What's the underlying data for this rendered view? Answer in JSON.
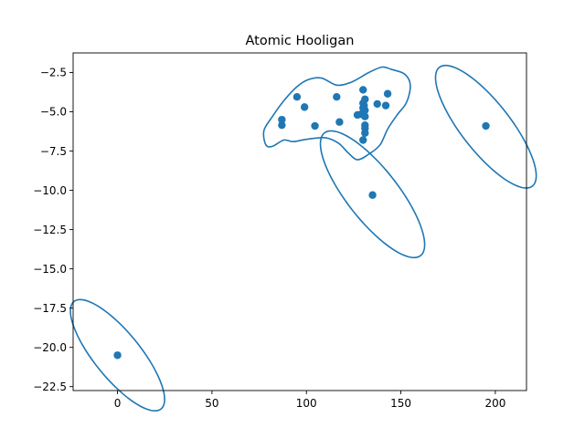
{
  "chart_data": {
    "type": "scatter",
    "title": "Atomic Hooligan",
    "xlabel": "",
    "ylabel": "",
    "xlim": [
      -23.5,
      216.5
    ],
    "ylim": [
      -22.75,
      -1.25
    ],
    "x_ticks": [
      0,
      50,
      100,
      150,
      200
    ],
    "y_ticks": [
      -22.5,
      -20.0,
      -17.5,
      -15.0,
      -12.5,
      -10.0,
      -7.5,
      -5.0,
      -2.5
    ],
    "x_tick_labels": [
      "0",
      "50",
      "100",
      "150",
      "200"
    ],
    "y_tick_labels": [
      "−22.5",
      "−20.0",
      "−17.5",
      "−15.0",
      "−12.5",
      "−10.0",
      "−7.5",
      "−5.0",
      "−2.5"
    ],
    "grid": false,
    "color": "#1f77b4",
    "series": [
      {
        "points": [
          [
            0,
            -20.5
          ],
          [
            87,
            -5.5
          ],
          [
            87,
            -5.85
          ],
          [
            95,
            -4.05
          ],
          [
            99,
            -4.7
          ],
          [
            104.5,
            -5.9
          ],
          [
            116,
            -4.05
          ],
          [
            117.5,
            -5.65
          ],
          [
            127,
            -5.2
          ],
          [
            129,
            -5.15
          ],
          [
            130,
            -3.6
          ],
          [
            130,
            -4.45
          ],
          [
            130,
            -4.75
          ],
          [
            130,
            -5.05
          ],
          [
            130,
            -6.8
          ],
          [
            130.5,
            -4.6
          ],
          [
            131,
            -4.2
          ],
          [
            131,
            -4.9
          ],
          [
            131,
            -5.3
          ],
          [
            131,
            -5.85
          ],
          [
            131,
            -6.05
          ],
          [
            131,
            -6.35
          ],
          [
            135,
            -10.3
          ],
          [
            137.5,
            -4.5
          ],
          [
            142,
            -4.6
          ],
          [
            143,
            -3.85
          ],
          [
            195,
            -5.9
          ]
        ]
      }
    ],
    "contours": [
      {
        "shape": "blob",
        "points": [
          [
            78.5,
            -7.1
          ],
          [
            77.5,
            -6.2
          ],
          [
            82,
            -5.3
          ],
          [
            88,
            -4.3
          ],
          [
            95,
            -3.4
          ],
          [
            101,
            -2.95
          ],
          [
            108,
            -2.85
          ],
          [
            116,
            -3.3
          ],
          [
            124,
            -3.1
          ],
          [
            133,
            -2.5
          ],
          [
            140,
            -2.15
          ],
          [
            145,
            -2.3
          ],
          [
            152,
            -2.6
          ],
          [
            155,
            -3.3
          ],
          [
            153,
            -4.4
          ],
          [
            148,
            -5.2
          ],
          [
            143,
            -6.1
          ],
          [
            139,
            -7.1
          ],
          [
            133,
            -7.7
          ],
          [
            127,
            -8.05
          ],
          [
            122,
            -7.6
          ],
          [
            117,
            -7.0
          ],
          [
            110,
            -6.65
          ],
          [
            100,
            -6.75
          ],
          [
            93,
            -6.9
          ],
          [
            88,
            -6.8
          ],
          [
            82,
            -7.2
          ]
        ]
      },
      {
        "shape": "ellipse",
        "center": [
          0,
          -20.5
        ],
        "rx": 12.2,
        "ry": 0.55,
        "angle_deg": 39
      },
      {
        "shape": "ellipse",
        "center": [
          135,
          -10.25
        ],
        "rx": 13.6,
        "ry": 0.62,
        "angle_deg": 38
      },
      {
        "shape": "ellipse",
        "center": [
          195,
          -5.95
        ],
        "rx": 13.0,
        "ry": 0.6,
        "angle_deg": 38
      }
    ]
  }
}
